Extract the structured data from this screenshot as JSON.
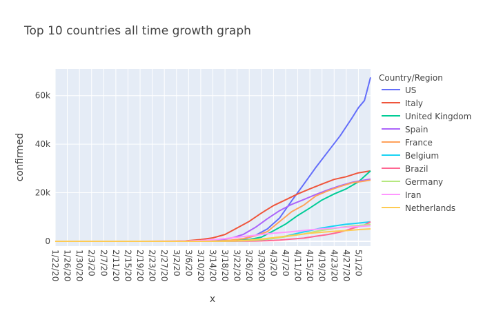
{
  "chart_data": {
    "type": "line",
    "title": "Top 10 countries all time growth graph",
    "xlabel": "x",
    "ylabel": "confirmed",
    "legend_title": "Country/Region",
    "legend_position": "right",
    "grid": true,
    "x_range": [
      "2020-01-22",
      "2020-05-05"
    ],
    "ylim": [
      -2000,
      71000
    ],
    "x_ticks": [
      "1/22/20",
      "1/26/20",
      "1/30/20",
      "2/3/20",
      "2/7/20",
      "2/11/20",
      "2/15/20",
      "2/19/20",
      "2/23/20",
      "2/27/20",
      "3/2/20",
      "3/6/20",
      "3/10/20",
      "3/14/20",
      "3/18/20",
      "3/22/20",
      "3/26/20",
      "3/30/20",
      "4/3/20",
      "4/7/20",
      "4/11/20",
      "4/15/20",
      "4/19/20",
      "4/23/20",
      "4/27/20",
      "5/1/20"
    ],
    "y_ticks": [
      {
        "value": 0,
        "label": "0"
      },
      {
        "value": 20000,
        "label": "20k"
      },
      {
        "value": 40000,
        "label": "40k"
      },
      {
        "value": 60000,
        "label": "60k"
      }
    ],
    "series": [
      {
        "name": "US",
        "color": "#636efa",
        "points": [
          [
            "2020-01-22",
            0
          ],
          [
            "2020-03-01",
            0
          ],
          [
            "2020-03-10",
            30
          ],
          [
            "2020-03-16",
            90
          ],
          [
            "2020-03-20",
            250
          ],
          [
            "2020-03-24",
            800
          ],
          [
            "2020-03-28",
            2400
          ],
          [
            "2020-04-01",
            5100
          ],
          [
            "2020-04-05",
            9600
          ],
          [
            "2020-04-09",
            16700
          ],
          [
            "2020-04-13",
            23500
          ],
          [
            "2020-04-17",
            30500
          ],
          [
            "2020-04-21",
            37000
          ],
          [
            "2020-04-25",
            43500
          ],
          [
            "2020-04-29",
            51000
          ],
          [
            "2020-05-01",
            55000
          ],
          [
            "2020-05-03",
            58000
          ],
          [
            "2020-05-05",
            67500
          ]
        ]
      },
      {
        "name": "Italy",
        "color": "#ef553b",
        "points": [
          [
            "2020-01-22",
            0
          ],
          [
            "2020-02-21",
            0
          ],
          [
            "2020-02-29",
            30
          ],
          [
            "2020-03-05",
            150
          ],
          [
            "2020-03-10",
            700
          ],
          [
            "2020-03-14",
            1400
          ],
          [
            "2020-03-18",
            2800
          ],
          [
            "2020-03-22",
            5500
          ],
          [
            "2020-03-26",
            8200
          ],
          [
            "2020-03-30",
            11600
          ],
          [
            "2020-04-03",
            14700
          ],
          [
            "2020-04-07",
            17100
          ],
          [
            "2020-04-11",
            19500
          ],
          [
            "2020-04-15",
            21600
          ],
          [
            "2020-04-19",
            23600
          ],
          [
            "2020-04-23",
            25500
          ],
          [
            "2020-04-27",
            26600
          ],
          [
            "2020-05-01",
            28200
          ],
          [
            "2020-05-05",
            29000
          ]
        ]
      },
      {
        "name": "United Kingdom",
        "color": "#00cc96",
        "points": [
          [
            "2020-01-22",
            0
          ],
          [
            "2020-03-10",
            0
          ],
          [
            "2020-03-18",
            100
          ],
          [
            "2020-03-22",
            300
          ],
          [
            "2020-03-26",
            700
          ],
          [
            "2020-03-30",
            1700
          ],
          [
            "2020-04-03",
            4300
          ],
          [
            "2020-04-07",
            7100
          ],
          [
            "2020-04-11",
            10600
          ],
          [
            "2020-04-15",
            13700
          ],
          [
            "2020-04-19",
            17000
          ],
          [
            "2020-04-23",
            19500
          ],
          [
            "2020-04-27",
            21600
          ],
          [
            "2020-05-01",
            24500
          ],
          [
            "2020-05-05",
            29000
          ]
        ]
      },
      {
        "name": "Spain",
        "color": "#ab63fa",
        "points": [
          [
            "2020-01-22",
            0
          ],
          [
            "2020-03-02",
            0
          ],
          [
            "2020-03-08",
            20
          ],
          [
            "2020-03-12",
            90
          ],
          [
            "2020-03-16",
            500
          ],
          [
            "2020-03-20",
            1300
          ],
          [
            "2020-03-24",
            2800
          ],
          [
            "2020-03-28",
            5700
          ],
          [
            "2020-04-01",
            9300
          ],
          [
            "2020-04-05",
            12600
          ],
          [
            "2020-04-09",
            15200
          ],
          [
            "2020-04-13",
            17200
          ],
          [
            "2020-04-17",
            19300
          ],
          [
            "2020-04-21",
            21200
          ],
          [
            "2020-04-25",
            22900
          ],
          [
            "2020-04-29",
            24300
          ],
          [
            "2020-05-03",
            25200
          ],
          [
            "2020-05-05",
            25600
          ]
        ]
      },
      {
        "name": "France",
        "color": "#ffa15a",
        "points": [
          [
            "2020-01-22",
            0
          ],
          [
            "2020-03-05",
            0
          ],
          [
            "2020-03-12",
            60
          ],
          [
            "2020-03-16",
            150
          ],
          [
            "2020-03-20",
            450
          ],
          [
            "2020-03-24",
            1100
          ],
          [
            "2020-03-28",
            2300
          ],
          [
            "2020-04-01",
            4000
          ],
          [
            "2020-04-05",
            8100
          ],
          [
            "2020-04-09",
            12200
          ],
          [
            "2020-04-13",
            14900
          ],
          [
            "2020-04-17",
            18700
          ],
          [
            "2020-04-21",
            20800
          ],
          [
            "2020-04-25",
            22600
          ],
          [
            "2020-04-29",
            24100
          ],
          [
            "2020-05-03",
            24800
          ],
          [
            "2020-05-05",
            25200
          ]
        ]
      },
      {
        "name": "Belgium",
        "color": "#19d3f3",
        "points": [
          [
            "2020-01-22",
            0
          ],
          [
            "2020-03-12",
            0
          ],
          [
            "2020-03-20",
            60
          ],
          [
            "2020-03-26",
            250
          ],
          [
            "2020-03-30",
            550
          ],
          [
            "2020-04-03",
            1150
          ],
          [
            "2020-04-07",
            2100
          ],
          [
            "2020-04-11",
            3300
          ],
          [
            "2020-04-15",
            4400
          ],
          [
            "2020-04-19",
            5500
          ],
          [
            "2020-04-23",
            6300
          ],
          [
            "2020-04-27",
            7000
          ],
          [
            "2020-05-01",
            7500
          ],
          [
            "2020-05-05",
            8000
          ]
        ]
      },
      {
        "name": "Brazil",
        "color": "#ff6692",
        "points": [
          [
            "2020-01-22",
            0
          ],
          [
            "2020-03-16",
            0
          ],
          [
            "2020-03-22",
            25
          ],
          [
            "2020-03-28",
            100
          ],
          [
            "2020-04-01",
            250
          ],
          [
            "2020-04-05",
            500
          ],
          [
            "2020-04-09",
            900
          ],
          [
            "2020-04-13",
            1300
          ],
          [
            "2020-04-17",
            2100
          ],
          [
            "2020-04-21",
            2800
          ],
          [
            "2020-04-25",
            3800
          ],
          [
            "2020-04-29",
            5300
          ],
          [
            "2020-05-03",
            6700
          ],
          [
            "2020-05-05",
            8000
          ]
        ]
      },
      {
        "name": "Germany",
        "color": "#b6e880",
        "points": [
          [
            "2020-01-22",
            0
          ],
          [
            "2020-03-08",
            0
          ],
          [
            "2020-03-16",
            20
          ],
          [
            "2020-03-20",
            70
          ],
          [
            "2020-03-24",
            180
          ],
          [
            "2020-03-28",
            430
          ],
          [
            "2020-04-01",
            900
          ],
          [
            "2020-04-05",
            1500
          ],
          [
            "2020-04-09",
            2300
          ],
          [
            "2020-04-13",
            3000
          ],
          [
            "2020-04-17",
            4100
          ],
          [
            "2020-04-21",
            4900
          ],
          [
            "2020-04-25",
            5700
          ],
          [
            "2020-04-29",
            6300
          ],
          [
            "2020-05-03",
            6700
          ],
          [
            "2020-05-05",
            7000
          ]
        ]
      },
      {
        "name": "Iran",
        "color": "#ff97ff",
        "points": [
          [
            "2020-01-22",
            0
          ],
          [
            "2020-02-19",
            0
          ],
          [
            "2020-02-26",
            20
          ],
          [
            "2020-03-02",
            70
          ],
          [
            "2020-03-06",
            120
          ],
          [
            "2020-03-10",
            300
          ],
          [
            "2020-03-14",
            600
          ],
          [
            "2020-03-18",
            1100
          ],
          [
            "2020-03-22",
            1700
          ],
          [
            "2020-03-26",
            2200
          ],
          [
            "2020-03-30",
            2800
          ],
          [
            "2020-04-03",
            3300
          ],
          [
            "2020-04-07",
            3700
          ],
          [
            "2020-04-11",
            4200
          ],
          [
            "2020-04-15",
            4700
          ],
          [
            "2020-04-19",
            5100
          ],
          [
            "2020-04-23",
            5500
          ],
          [
            "2020-04-27",
            5800
          ],
          [
            "2020-05-01",
            6100
          ],
          [
            "2020-05-05",
            6400
          ]
        ]
      },
      {
        "name": "Netherlands",
        "color": "#fecb52",
        "points": [
          [
            "2020-01-22",
            0
          ],
          [
            "2020-03-08",
            0
          ],
          [
            "2020-03-14",
            20
          ],
          [
            "2020-03-18",
            60
          ],
          [
            "2020-03-22",
            200
          ],
          [
            "2020-03-26",
            500
          ],
          [
            "2020-03-30",
            900
          ],
          [
            "2020-04-03",
            1500
          ],
          [
            "2020-04-07",
            2100
          ],
          [
            "2020-04-11",
            2700
          ],
          [
            "2020-04-15",
            3300
          ],
          [
            "2020-04-19",
            3700
          ],
          [
            "2020-04-23",
            4100
          ],
          [
            "2020-04-27",
            4400
          ],
          [
            "2020-05-01",
            4800
          ],
          [
            "2020-05-05",
            5100
          ]
        ]
      }
    ]
  }
}
